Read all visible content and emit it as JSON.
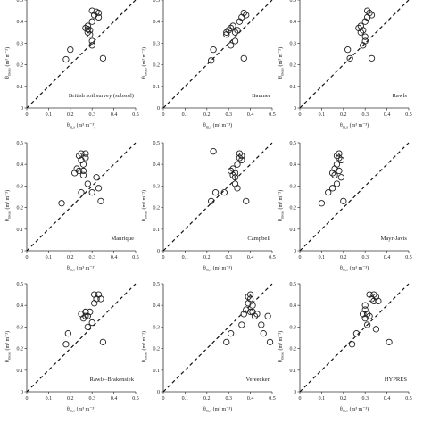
{
  "x_axis_label": "θ",
  "x_axis_sub": "m,s",
  "x_axis_unit": "(m³ m⁻³)",
  "y_axis_label": "θ",
  "y_axis_sub": "meas",
  "y_axis_unit": "(m³ m⁻³)",
  "chart_data": [
    {
      "type": "scatter",
      "title": "British soil survey (subsoil)",
      "xlim": [
        0,
        0.5
      ],
      "ylim": [
        0,
        0.5
      ],
      "xticks": [
        "0",
        "0.1",
        "0.2",
        "0.3",
        "0.4",
        "0.5"
      ],
      "yticks": [
        "0",
        "0.1",
        "0.2",
        "0.3",
        "0.4",
        "0.5"
      ],
      "reference_line": "1:1 dashed",
      "points": [
        [
          0.18,
          0.225
        ],
        [
          0.2,
          0.27
        ],
        [
          0.27,
          0.37
        ],
        [
          0.28,
          0.35
        ],
        [
          0.28,
          0.38
        ],
        [
          0.29,
          0.36
        ],
        [
          0.29,
          0.34
        ],
        [
          0.3,
          0.29
        ],
        [
          0.3,
          0.31
        ],
        [
          0.3,
          0.4
        ],
        [
          0.31,
          0.43
        ],
        [
          0.3,
          0.45
        ],
        [
          0.32,
          0.445
        ],
        [
          0.33,
          0.44
        ],
        [
          0.33,
          0.42
        ],
        [
          0.28,
          0.365
        ],
        [
          0.35,
          0.23
        ]
      ]
    },
    {
      "type": "scatter",
      "title": "Baumer",
      "xlim": [
        0,
        0.5
      ],
      "ylim": [
        0,
        0.5
      ],
      "xticks": [
        "0",
        "0.1",
        "0.2",
        "0.3",
        "0.4",
        "0.5"
      ],
      "yticks": [
        "0",
        "0.1",
        "0.2",
        "0.3",
        "0.4",
        "0.5"
      ],
      "reference_line": "1:1 dashed",
      "points": [
        [
          0.22,
          0.22
        ],
        [
          0.23,
          0.27
        ],
        [
          0.29,
          0.34
        ],
        [
          0.3,
          0.36
        ],
        [
          0.31,
          0.37
        ],
        [
          0.32,
          0.38
        ],
        [
          0.33,
          0.35
        ],
        [
          0.34,
          0.36
        ],
        [
          0.35,
          0.4
        ],
        [
          0.36,
          0.42
        ],
        [
          0.37,
          0.44
        ],
        [
          0.38,
          0.43
        ],
        [
          0.31,
          0.29
        ],
        [
          0.33,
          0.31
        ],
        [
          0.29,
          0.35
        ],
        [
          0.37,
          0.23
        ]
      ]
    },
    {
      "type": "scatter",
      "title": "Rawls",
      "xlim": [
        0,
        0.5
      ],
      "ylim": [
        0,
        0.5
      ],
      "xticks": [
        "0",
        "0.1",
        "0.2",
        "0.3",
        "0.4",
        "0.5"
      ],
      "yticks": [
        "0",
        "0.1",
        "0.2",
        "0.3",
        "0.4",
        "0.5"
      ],
      "reference_line": "1:1 dashed",
      "points": [
        [
          0.22,
          0.27
        ],
        [
          0.23,
          0.23
        ],
        [
          0.27,
          0.37
        ],
        [
          0.28,
          0.35
        ],
        [
          0.28,
          0.38
        ],
        [
          0.29,
          0.36
        ],
        [
          0.29,
          0.29
        ],
        [
          0.3,
          0.31
        ],
        [
          0.3,
          0.4
        ],
        [
          0.31,
          0.42
        ],
        [
          0.31,
          0.45
        ],
        [
          0.32,
          0.44
        ],
        [
          0.33,
          0.43
        ],
        [
          0.3,
          0.33
        ],
        [
          0.33,
          0.23
        ]
      ]
    },
    {
      "type": "scatter",
      "title": "Manrique",
      "xlim": [
        0,
        0.5
      ],
      "ylim": [
        0,
        0.5
      ],
      "xticks": [
        "0",
        "0.1",
        "0.2",
        "0.3",
        "0.4",
        "0.5"
      ],
      "yticks": [
        "0",
        "0.1",
        "0.2",
        "0.3",
        "0.4",
        "0.5"
      ],
      "reference_line": "1:1 dashed",
      "points": [
        [
          0.16,
          0.22
        ],
        [
          0.22,
          0.36
        ],
        [
          0.23,
          0.38
        ],
        [
          0.24,
          0.37
        ],
        [
          0.24,
          0.44
        ],
        [
          0.25,
          0.45
        ],
        [
          0.25,
          0.42
        ],
        [
          0.26,
          0.4
        ],
        [
          0.26,
          0.35
        ],
        [
          0.27,
          0.45
        ],
        [
          0.27,
          0.43
        ],
        [
          0.28,
          0.31
        ],
        [
          0.25,
          0.27
        ],
        [
          0.3,
          0.27
        ],
        [
          0.32,
          0.34
        ],
        [
          0.33,
          0.29
        ],
        [
          0.34,
          0.23
        ],
        [
          0.26,
          0.37
        ]
      ]
    },
    {
      "type": "scatter",
      "title": "Campbell",
      "xlim": [
        0,
        0.5
      ],
      "ylim": [
        0,
        0.5
      ],
      "xticks": [
        "0",
        "0.1",
        "0.2",
        "0.3",
        "0.4",
        "0.5"
      ],
      "yticks": [
        "0",
        "0.1",
        "0.2",
        "0.3",
        "0.4",
        "0.5"
      ],
      "reference_line": "1:1 dashed",
      "points": [
        [
          0.23,
          0.46
        ],
        [
          0.22,
          0.23
        ],
        [
          0.24,
          0.27
        ],
        [
          0.28,
          0.27
        ],
        [
          0.31,
          0.37
        ],
        [
          0.32,
          0.35
        ],
        [
          0.32,
          0.38
        ],
        [
          0.33,
          0.36
        ],
        [
          0.33,
          0.31
        ],
        [
          0.34,
          0.29
        ],
        [
          0.34,
          0.4
        ],
        [
          0.35,
          0.43
        ],
        [
          0.35,
          0.45
        ],
        [
          0.36,
          0.44
        ],
        [
          0.36,
          0.42
        ],
        [
          0.33,
          0.34
        ],
        [
          0.38,
          0.23
        ]
      ]
    },
    {
      "type": "scatter",
      "title": "Mayr-Javis",
      "xlim": [
        0,
        0.5
      ],
      "ylim": [
        0,
        0.5
      ],
      "xticks": [
        "0",
        "0.1",
        "0.2",
        "0.3",
        "0.4",
        "0.5"
      ],
      "yticks": [
        "0",
        "0.1",
        "0.2",
        "0.3",
        "0.4",
        "0.5"
      ],
      "reference_line": "1:1 dashed",
      "points": [
        [
          0.1,
          0.22
        ],
        [
          0.13,
          0.27
        ],
        [
          0.15,
          0.29
        ],
        [
          0.15,
          0.36
        ],
        [
          0.16,
          0.35
        ],
        [
          0.16,
          0.38
        ],
        [
          0.17,
          0.4
        ],
        [
          0.17,
          0.44
        ],
        [
          0.18,
          0.45
        ],
        [
          0.18,
          0.43
        ],
        [
          0.19,
          0.42
        ],
        [
          0.17,
          0.31
        ],
        [
          0.19,
          0.34
        ],
        [
          0.2,
          0.23
        ],
        [
          0.18,
          0.37
        ]
      ]
    },
    {
      "type": "scatter",
      "title": "Rawls–Brakensiek",
      "xlim": [
        0,
        0.5
      ],
      "ylim": [
        0,
        0.5
      ],
      "xticks": [
        "0",
        "0.1",
        "0.2",
        "0.3",
        "0.4",
        "0.5"
      ],
      "yticks": [
        "0",
        "0.1",
        "0.2",
        "0.3",
        "0.4",
        "0.5"
      ],
      "reference_line": "1:1 dashed",
      "points": [
        [
          0.18,
          0.22
        ],
        [
          0.19,
          0.27
        ],
        [
          0.25,
          0.36
        ],
        [
          0.26,
          0.34
        ],
        [
          0.27,
          0.37
        ],
        [
          0.28,
          0.35
        ],
        [
          0.28,
          0.3
        ],
        [
          0.29,
          0.37
        ],
        [
          0.3,
          0.32
        ],
        [
          0.31,
          0.41
        ],
        [
          0.31,
          0.45
        ],
        [
          0.32,
          0.43
        ],
        [
          0.33,
          0.45
        ],
        [
          0.34,
          0.43
        ],
        [
          0.35,
          0.23
        ],
        [
          0.27,
          0.35
        ]
      ]
    },
    {
      "type": "scatter",
      "title": "Vereecken",
      "xlim": [
        0,
        0.5
      ],
      "ylim": [
        0,
        0.5
      ],
      "xticks": [
        "0",
        "0.1",
        "0.2",
        "0.3",
        "0.4",
        "0.5"
      ],
      "yticks": [
        "0",
        "0.1",
        "0.2",
        "0.3",
        "0.4",
        "0.5"
      ],
      "reference_line": "1:1 dashed",
      "points": [
        [
          0.29,
          0.23
        ],
        [
          0.31,
          0.27
        ],
        [
          0.36,
          0.31
        ],
        [
          0.37,
          0.36
        ],
        [
          0.38,
          0.38
        ],
        [
          0.39,
          0.41
        ],
        [
          0.39,
          0.44
        ],
        [
          0.4,
          0.45
        ],
        [
          0.4,
          0.43
        ],
        [
          0.41,
          0.4
        ],
        [
          0.41,
          0.37
        ],
        [
          0.42,
          0.35
        ],
        [
          0.43,
          0.36
        ],
        [
          0.45,
          0.31
        ],
        [
          0.46,
          0.27
        ],
        [
          0.48,
          0.35
        ],
        [
          0.49,
          0.23
        ],
        [
          0.4,
          0.37
        ]
      ]
    },
    {
      "type": "scatter",
      "title": "HYPRES",
      "xlim": [
        0,
        0.5
      ],
      "ylim": [
        0,
        0.5
      ],
      "xticks": [
        "0",
        "0.1",
        "0.2",
        "0.3",
        "0.4",
        "0.5"
      ],
      "yticks": [
        "0",
        "0.1",
        "0.2",
        "0.3",
        "0.4",
        "0.5"
      ],
      "reference_line": "1:1 dashed",
      "points": [
        [
          0.24,
          0.22
        ],
        [
          0.26,
          0.27
        ],
        [
          0.29,
          0.36
        ],
        [
          0.3,
          0.34
        ],
        [
          0.3,
          0.38
        ],
        [
          0.31,
          0.36
        ],
        [
          0.31,
          0.31
        ],
        [
          0.32,
          0.35
        ],
        [
          0.33,
          0.43
        ],
        [
          0.34,
          0.45
        ],
        [
          0.34,
          0.42
        ],
        [
          0.35,
          0.44
        ],
        [
          0.36,
          0.42
        ],
        [
          0.3,
          0.4
        ],
        [
          0.35,
          0.29
        ],
        [
          0.32,
          0.45
        ],
        [
          0.41,
          0.23
        ],
        [
          0.29,
          0.36
        ]
      ]
    }
  ]
}
